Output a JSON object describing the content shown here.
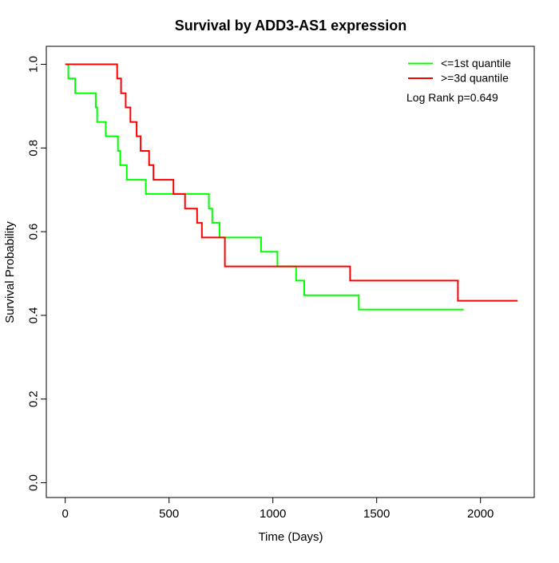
{
  "chart_data": {
    "type": "line",
    "variant": "kaplan_meier_step",
    "title": "Survival by ADD3-AS1 expression",
    "xlabel": "Time (Days)",
    "ylabel": "Survival Probability",
    "xlim": [
      0,
      2260
    ],
    "ylim": [
      0.0,
      1.0
    ],
    "grid": false,
    "legend_position": "top-right",
    "annotation": "Log Rank p=0.649",
    "x_ticks": [
      {
        "value": 0,
        "label": "0"
      },
      {
        "value": 500,
        "label": "500"
      },
      {
        "value": 1000,
        "label": "1000"
      },
      {
        "value": 1500,
        "label": "1500"
      },
      {
        "value": 2000,
        "label": "2000"
      }
    ],
    "y_ticks": [
      {
        "value": 0.0,
        "label": "0.0"
      },
      {
        "value": 0.2,
        "label": "0.2"
      },
      {
        "value": 0.4,
        "label": "0.4"
      },
      {
        "value": 0.6,
        "label": "0.6"
      },
      {
        "value": 0.8,
        "label": "0.8"
      },
      {
        "value": 1.0,
        "label": "1.0"
      }
    ],
    "series": [
      {
        "name": "<=1st quantile",
        "color": "#00ff00",
        "start": [
          0,
          1.0
        ],
        "end_time": 1919,
        "steps": [
          [
            15,
            0.966
          ],
          [
            48,
            0.931
          ],
          [
            147,
            0.897
          ],
          [
            154,
            0.862
          ],
          [
            195,
            0.828
          ],
          [
            254,
            0.793
          ],
          [
            265,
            0.759
          ],
          [
            296,
            0.724
          ],
          [
            388,
            0.69
          ],
          [
            692,
            0.655
          ],
          [
            708,
            0.621
          ],
          [
            743,
            0.586
          ],
          [
            943,
            0.552
          ],
          [
            1022,
            0.517
          ],
          [
            1112,
            0.483
          ],
          [
            1151,
            0.448
          ],
          [
            1414,
            0.414
          ]
        ]
      },
      {
        "name": ">=3d quantile",
        "color": "#ff0000",
        "start": [
          0,
          1.0
        ],
        "end_time": 2179,
        "steps": [
          [
            250,
            0.966
          ],
          [
            269,
            0.931
          ],
          [
            291,
            0.897
          ],
          [
            314,
            0.862
          ],
          [
            344,
            0.828
          ],
          [
            363,
            0.793
          ],
          [
            404,
            0.759
          ],
          [
            425,
            0.724
          ],
          [
            521,
            0.69
          ],
          [
            577,
            0.655
          ],
          [
            635,
            0.621
          ],
          [
            658,
            0.586
          ],
          [
            769,
            0.517
          ],
          [
            1372,
            0.483
          ],
          [
            1891,
            0.435
          ]
        ]
      }
    ]
  }
}
